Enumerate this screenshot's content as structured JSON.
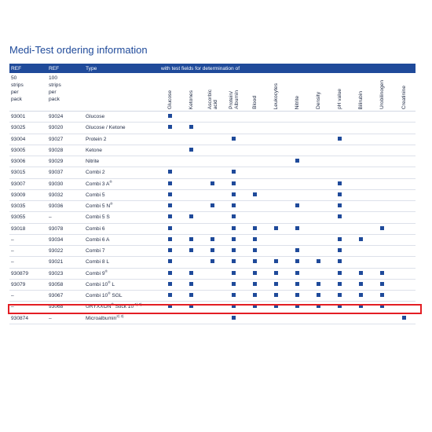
{
  "title": "Medi-Test ordering information",
  "colors": {
    "header_bg": "#1f4a9a",
    "mark": "#1f4a9a",
    "highlight": "#e31e24",
    "title": "#1f4a9a"
  },
  "columns": {
    "ref1": "REF",
    "ref2": "REF",
    "type": "Type",
    "fields_heading": "with test fields for determination of",
    "ref1_sub": [
      "50",
      "strips",
      "per",
      "pack"
    ],
    "ref2_sub": [
      "100",
      "strips",
      "per",
      "pack"
    ],
    "tests": [
      "Glucose",
      "Ketones",
      "Ascorbic\nacid",
      "Protein/\nAlbumin",
      "Blood",
      "Leukocytes",
      "Nitrite",
      "Density",
      "pH value",
      "Bilirubin",
      "Urobilinogen",
      "Creatinine"
    ]
  },
  "rows": [
    {
      "ref50": "93001",
      "ref100": "93024",
      "type": "Glucose",
      "sup": "",
      "marks": [
        1,
        0,
        0,
        0,
        0,
        0,
        0,
        0,
        0,
        0,
        0,
        0
      ]
    },
    {
      "ref50": "93025",
      "ref100": "93020",
      "type": "Glucose / Ketone",
      "sup": "",
      "marks": [
        1,
        1,
        0,
        0,
        0,
        0,
        0,
        0,
        0,
        0,
        0,
        0
      ]
    },
    {
      "ref50": "93004",
      "ref100": "93027",
      "type": "Protein 2",
      "sup": "",
      "marks": [
        0,
        0,
        0,
        1,
        0,
        0,
        0,
        0,
        1,
        0,
        0,
        0
      ]
    },
    {
      "ref50": "93005",
      "ref100": "93028",
      "type": "Ketone",
      "sup": "",
      "marks": [
        0,
        1,
        0,
        0,
        0,
        0,
        0,
        0,
        0,
        0,
        0,
        0
      ]
    },
    {
      "ref50": "93006",
      "ref100": "93029",
      "type": "Nitrite",
      "sup": "",
      "marks": [
        0,
        0,
        0,
        0,
        0,
        0,
        1,
        0,
        0,
        0,
        0,
        0
      ]
    },
    {
      "ref50": "93015",
      "ref100": "93037",
      "type": "Combi 2",
      "sup": "",
      "marks": [
        1,
        0,
        0,
        1,
        0,
        0,
        0,
        0,
        0,
        0,
        0,
        0
      ]
    },
    {
      "ref50": "93007",
      "ref100": "93030",
      "type": "Combi 3 A",
      "sup": "®",
      "marks": [
        1,
        0,
        1,
        1,
        0,
        0,
        0,
        0,
        1,
        0,
        0,
        0
      ]
    },
    {
      "ref50": "93009",
      "ref100": "93032",
      "type": "Combi 5",
      "sup": "",
      "marks": [
        1,
        0,
        0,
        1,
        1,
        0,
        0,
        0,
        1,
        0,
        0,
        0
      ]
    },
    {
      "ref50": "93035",
      "ref100": "93036",
      "type": "Combi 5 N",
      "sup": "®",
      "marks": [
        1,
        0,
        1,
        1,
        0,
        0,
        1,
        0,
        1,
        0,
        0,
        0
      ]
    },
    {
      "ref50": "93055",
      "ref100": "–",
      "type": "Combi 5 S",
      "sup": "",
      "marks": [
        1,
        1,
        0,
        1,
        0,
        0,
        0,
        0,
        1,
        0,
        0,
        0
      ]
    },
    {
      "ref50": "93018",
      "ref100": "93078",
      "type": "Combi 6",
      "sup": "",
      "marks": [
        1,
        0,
        0,
        1,
        1,
        1,
        1,
        0,
        0,
        0,
        1,
        0
      ]
    },
    {
      "ref50": "–",
      "ref100": "93034",
      "type": "Combi 6 A",
      "sup": "",
      "marks": [
        1,
        1,
        1,
        1,
        1,
        0,
        0,
        0,
        1,
        1,
        0,
        0
      ]
    },
    {
      "ref50": "–",
      "ref100": "93022",
      "type": "Combi 7",
      "sup": "",
      "marks": [
        1,
        1,
        1,
        1,
        1,
        0,
        1,
        0,
        1,
        0,
        0,
        0
      ]
    },
    {
      "ref50": "–",
      "ref100": "93021",
      "type": "Combi 8 L",
      "sup": "",
      "marks": [
        1,
        0,
        1,
        1,
        1,
        1,
        1,
        1,
        1,
        0,
        0,
        0
      ]
    },
    {
      "ref50": "930879",
      "ref100": "93023",
      "type": "Combi 9",
      "sup": "®",
      "marks": [
        1,
        1,
        0,
        1,
        1,
        1,
        1,
        0,
        1,
        1,
        1,
        0
      ]
    },
    {
      "ref50": "93079",
      "ref100": "93058",
      "type": "Combi 10",
      "type_after": " L",
      "sup": "®",
      "marks": [
        1,
        1,
        0,
        1,
        1,
        1,
        1,
        1,
        1,
        1,
        1,
        0
      ]
    },
    {
      "ref50": "–",
      "ref100": "93067",
      "type": "Combi 10",
      "type_after": " SGL",
      "sup": "®",
      "marks": [
        1,
        1,
        0,
        1,
        1,
        1,
        1,
        1,
        1,
        1,
        1,
        0
      ]
    },
    {
      "ref50": "–",
      "ref100": "93068",
      "type": "URYXXON",
      "type_after": " Stick 10",
      "sup": "®",
      "sup2": "1) 2)",
      "marks": [
        1,
        1,
        0,
        1,
        1,
        1,
        1,
        1,
        1,
        1,
        1,
        0
      ],
      "highlight": true
    },
    {
      "ref50": "930874",
      "ref100": "–",
      "type": "Microalbumin",
      "sup": "2) 3)",
      "marks": [
        0,
        0,
        0,
        1,
        0,
        0,
        0,
        0,
        0,
        0,
        0,
        1
      ]
    }
  ]
}
